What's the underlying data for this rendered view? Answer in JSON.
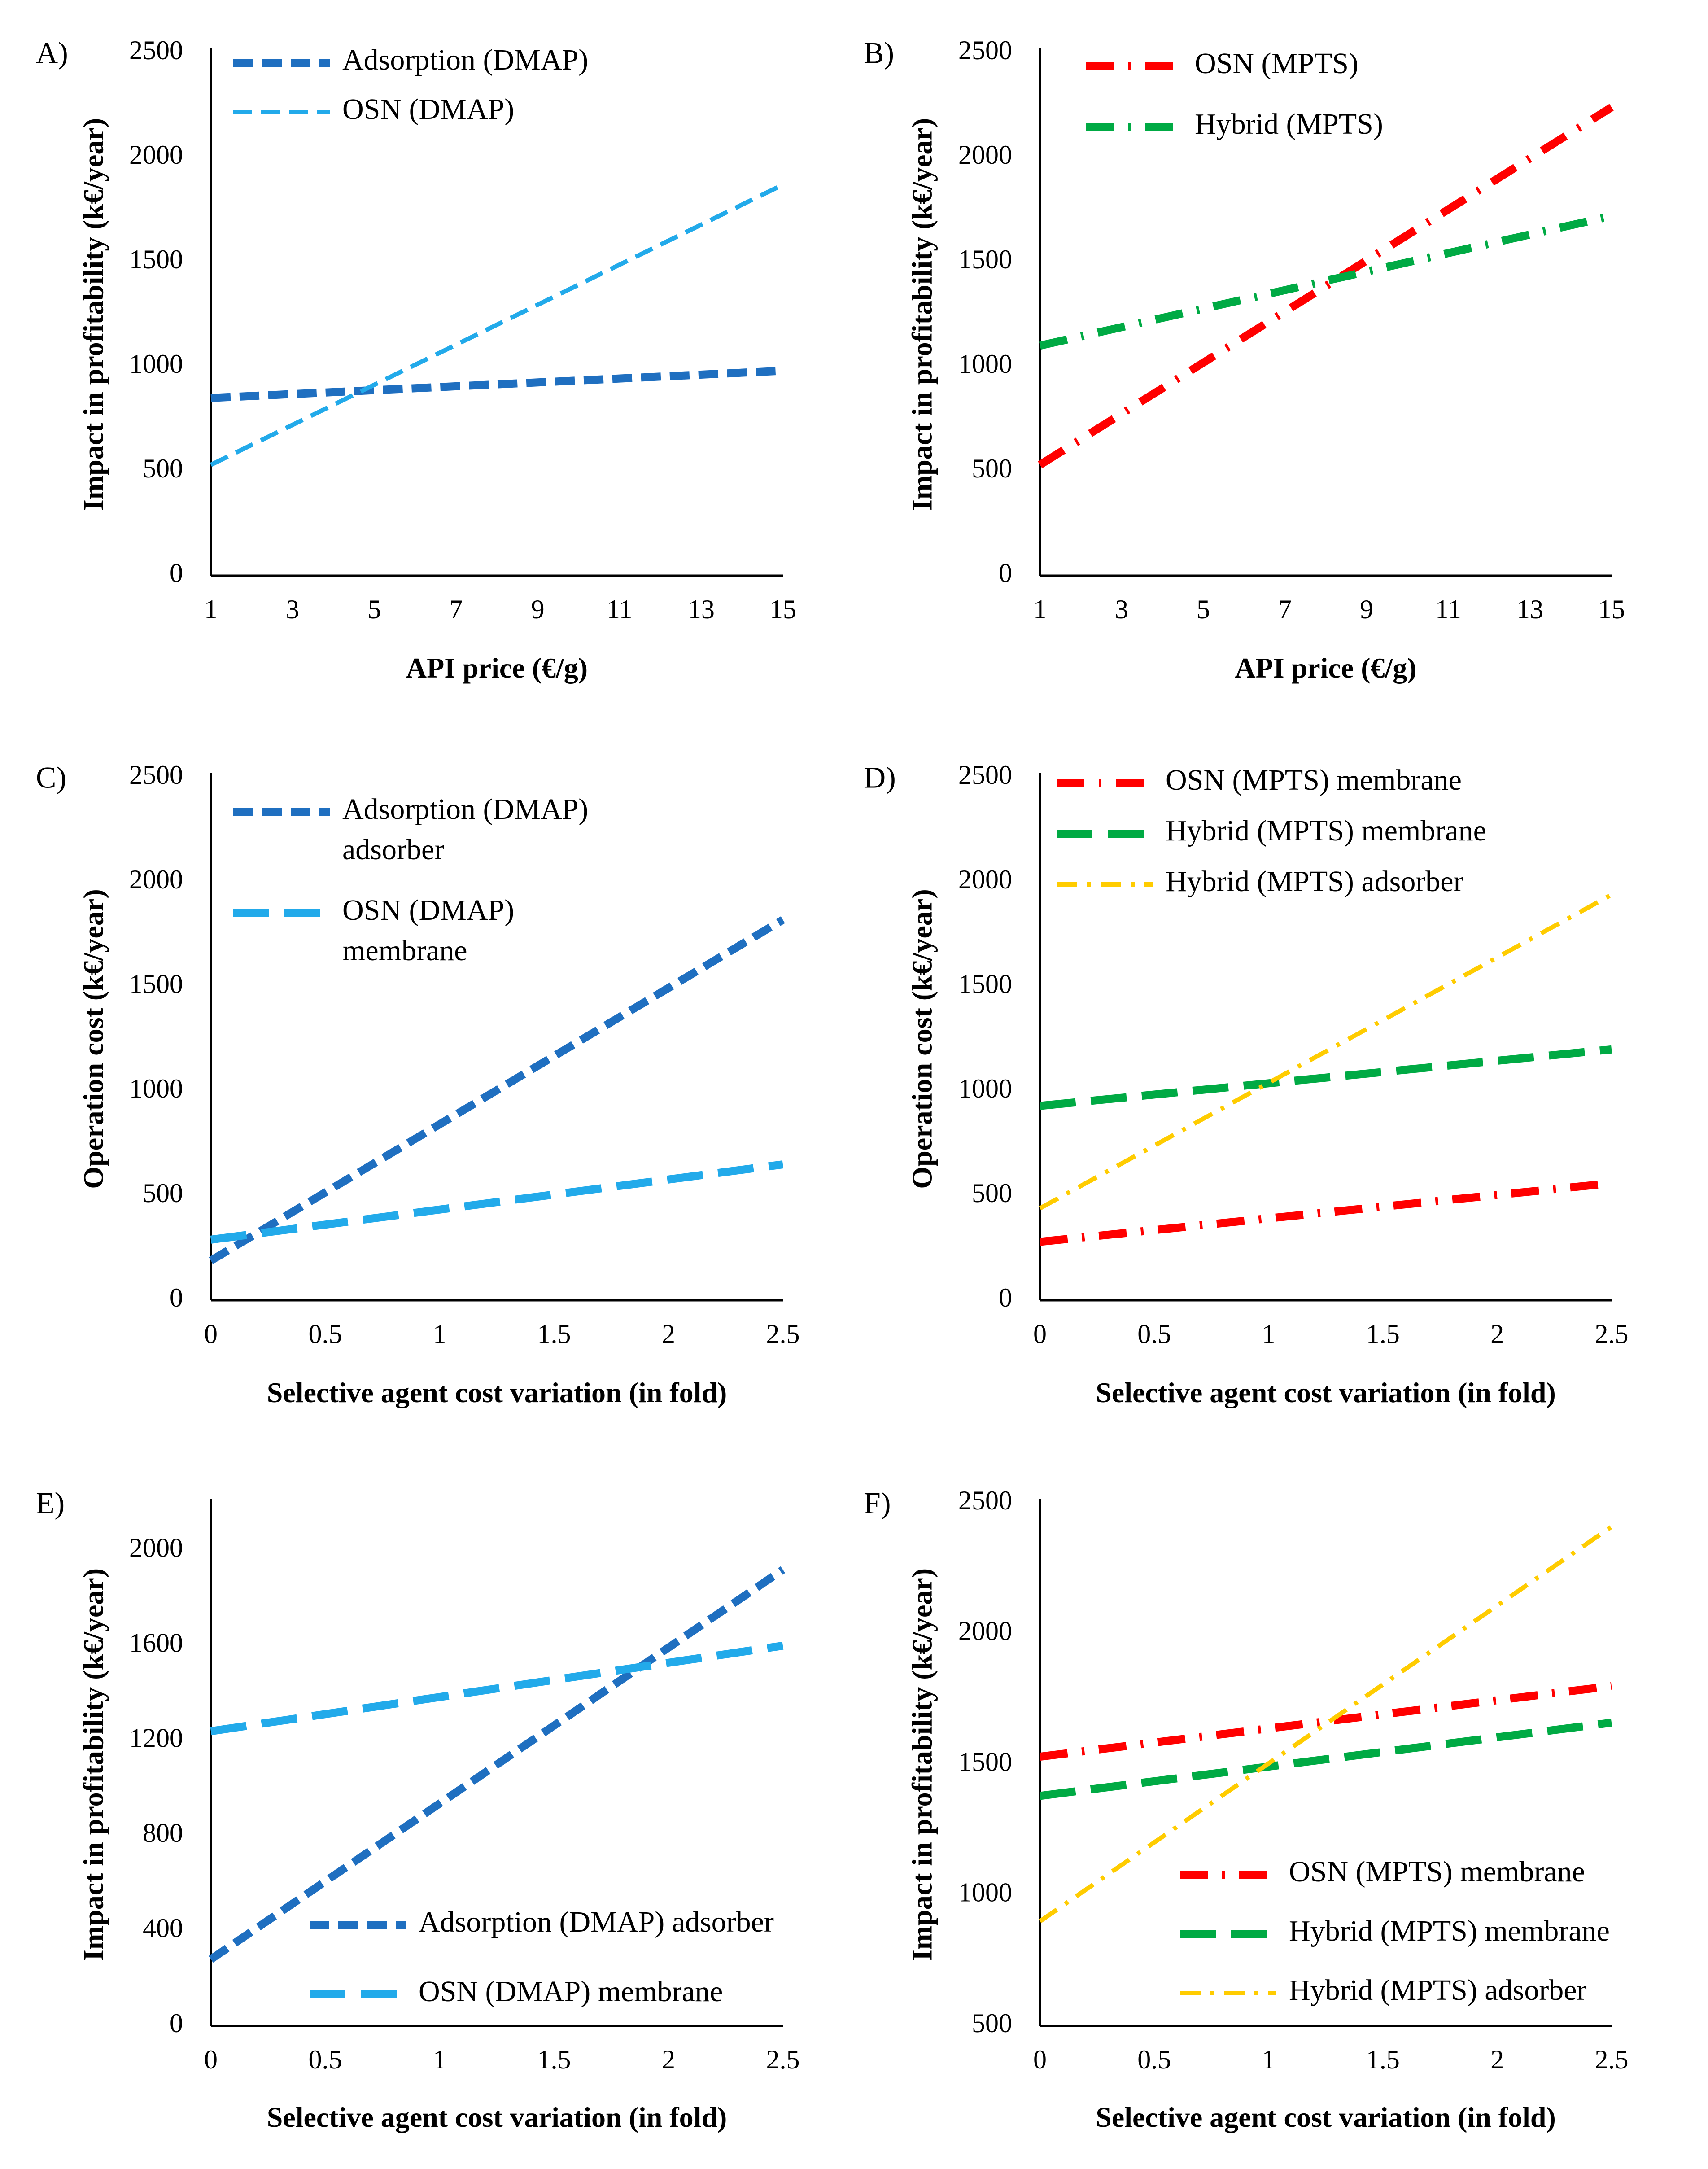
{
  "chart_data": [
    {
      "panel": "A)",
      "type": "line",
      "xlabel": "API price (€/g)",
      "ylabel": "Impact in profitability (k€/year)",
      "xlim": [
        1,
        15
      ],
      "ylim": [
        0,
        2500
      ],
      "xticks": [
        1,
        3,
        5,
        7,
        9,
        11,
        13,
        15
      ],
      "yticks": [
        0,
        500,
        1000,
        1500,
        2000,
        2500
      ],
      "series": [
        {
          "name": "Adsorption (DMAP)",
          "x": [
            1,
            15
          ],
          "y": [
            850,
            980
          ],
          "color": "#1F6FC0",
          "dash": "dash",
          "width": "thick"
        },
        {
          "name": "OSN (DMAP)",
          "x": [
            1,
            15
          ],
          "y": [
            530,
            1870
          ],
          "color": "#22AAEA",
          "dash": "dash",
          "width": "medium"
        }
      ]
    },
    {
      "panel": "B)",
      "type": "line",
      "xlabel": "API price (€/g)",
      "ylabel": "Impact in profitability (k€/year)",
      "xlim": [
        1,
        15
      ],
      "ylim": [
        0,
        2500
      ],
      "xticks": [
        1,
        3,
        5,
        7,
        9,
        11,
        13,
        15
      ],
      "yticks": [
        0,
        500,
        1000,
        1500,
        2000,
        2500
      ],
      "series": [
        {
          "name": "OSN (MPTS)",
          "x": [
            1,
            15
          ],
          "y": [
            530,
            2240
          ],
          "color": "#FF0000",
          "dash": "dashdot",
          "width": "thick"
        },
        {
          "name": "Hybrid (MPTS)",
          "x": [
            1,
            15
          ],
          "y": [
            1100,
            1720
          ],
          "color": "#00AA44",
          "dash": "dashdot",
          "width": "thick"
        }
      ]
    },
    {
      "panel": "C)",
      "type": "line",
      "xlabel": "Selective agent cost variation (in fold)",
      "ylabel": "Operation cost (k€/year)",
      "xlim": [
        0,
        2.5
      ],
      "ylim": [
        0,
        2500
      ],
      "xticks": [
        0,
        0.5,
        1,
        1.5,
        2,
        2.5
      ],
      "yticks": [
        0,
        500,
        1000,
        1500,
        2000,
        2500
      ],
      "series": [
        {
          "name": "Adsorption (DMAP) adsorber",
          "legend_lines": [
            "Adsorption (DMAP)",
            "adsorber"
          ],
          "x": [
            0,
            2.5
          ],
          "y": [
            190,
            1820
          ],
          "color": "#1F6FC0",
          "dash": "dash",
          "width": "thick"
        },
        {
          "name": "OSN (DMAP) membrane",
          "legend_lines": [
            "OSN (DMAP)",
            "membrane"
          ],
          "x": [
            0,
            2.5
          ],
          "y": [
            290,
            650
          ],
          "color": "#22AAEA",
          "dash": "longdash",
          "width": "thick"
        }
      ]
    },
    {
      "panel": "D)",
      "type": "line",
      "xlabel": "Selective agent cost variation (in fold)",
      "ylabel": "Operation cost (k€/year)",
      "xlim": [
        0,
        2.5
      ],
      "ylim": [
        0,
        2500
      ],
      "xticks": [
        0,
        0.5,
        1,
        1.5,
        2,
        2.5
      ],
      "yticks": [
        0,
        500,
        1000,
        1500,
        2000,
        2500
      ],
      "series": [
        {
          "name": "OSN (MPTS) membrane",
          "x": [
            0,
            2.5
          ],
          "y": [
            280,
            560
          ],
          "color": "#FF0000",
          "dash": "dashdot",
          "width": "thick"
        },
        {
          "name": "Hybrid (MPTS) membrane",
          "x": [
            0,
            2.5
          ],
          "y": [
            930,
            1200
          ],
          "color": "#00AA44",
          "dash": "longdash",
          "width": "thick"
        },
        {
          "name": "Hybrid (MPTS) adsorber",
          "x": [
            0,
            2.5
          ],
          "y": [
            440,
            1940
          ],
          "color": "#FFCC00",
          "dash": "dashdot",
          "width": "medium"
        }
      ]
    },
    {
      "panel": "E)",
      "type": "line",
      "xlabel": "Selective agent cost variation (in fold)",
      "ylabel": "Impact in profitability (k€/year)",
      "xlim": [
        0,
        2.5
      ],
      "ylim": [
        0,
        2200
      ],
      "xticks": [
        0,
        0.5,
        1,
        1.5,
        2,
        2.5
      ],
      "yticks": [
        0,
        400,
        800,
        1200,
        1600,
        2000
      ],
      "series": [
        {
          "name": "Adsorption (DMAP) adsorber",
          "x": [
            0,
            2.5
          ],
          "y": [
            280,
            1920
          ],
          "color": "#1F6FC0",
          "dash": "dash",
          "width": "thick"
        },
        {
          "name": "OSN (DMAP) membrane",
          "x": [
            0,
            2.5
          ],
          "y": [
            1240,
            1600
          ],
          "color": "#22AAEA",
          "dash": "longdash",
          "width": "thick"
        }
      ]
    },
    {
      "panel": "F)",
      "type": "line",
      "xlabel": "Selective agent cost variation (in fold)",
      "ylabel": "Impact in profitability (k€/year)",
      "xlim": [
        0,
        2.5
      ],
      "ylim": [
        500,
        2500
      ],
      "xticks": [
        0,
        0.5,
        1,
        1.5,
        2,
        2.5
      ],
      "yticks": [
        500,
        1000,
        1500,
        2000,
        2500
      ],
      "series": [
        {
          "name": "OSN (MPTS) membrane",
          "x": [
            0,
            2.5
          ],
          "y": [
            1530,
            1800
          ],
          "color": "#FF0000",
          "dash": "dashdot",
          "width": "thick"
        },
        {
          "name": "Hybrid (MPTS) membrane",
          "x": [
            0,
            2.5
          ],
          "y": [
            1380,
            1660
          ],
          "color": "#00AA44",
          "dash": "longdash",
          "width": "thick"
        },
        {
          "name": "Hybrid (MPTS) adsorber",
          "x": [
            0,
            2.5
          ],
          "y": [
            900,
            2410
          ],
          "color": "#FFCC00",
          "dash": "dashdot",
          "width": "medium"
        }
      ]
    }
  ]
}
